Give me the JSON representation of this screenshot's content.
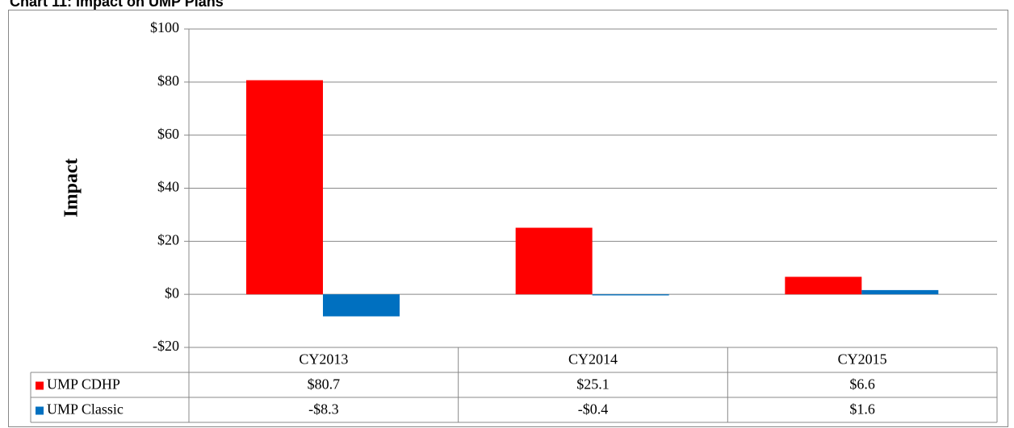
{
  "chart_data": {
    "type": "bar",
    "title": "Chart 11: Impact on UMP Plans",
    "y_label": "Impact",
    "categories": [
      "CY2013",
      "CY2014",
      "CY2015"
    ],
    "series": [
      {
        "name": "UMP CDHP",
        "color": "#ff0000",
        "values": [
          80.7,
          25.1,
          6.6
        ],
        "value_labels": [
          "$80.7",
          "$25.1",
          "$6.6"
        ]
      },
      {
        "name": "UMP Classic",
        "color": "#0070c0",
        "values": [
          -8.3,
          -0.4,
          1.6
        ],
        "value_labels": [
          "-$8.3",
          "-$0.4",
          "$1.6"
        ]
      }
    ],
    "ylim": [
      -20,
      100
    ],
    "yticks": [
      {
        "value": -20,
        "label": "-$20"
      },
      {
        "value": 0,
        "label": "$0"
      },
      {
        "value": 20,
        "label": "$20"
      },
      {
        "value": 40,
        "label": "$40"
      },
      {
        "value": 60,
        "label": "$60"
      },
      {
        "value": 80,
        "label": "$80"
      },
      {
        "value": 100,
        "label": "$100"
      }
    ],
    "grid": true
  }
}
